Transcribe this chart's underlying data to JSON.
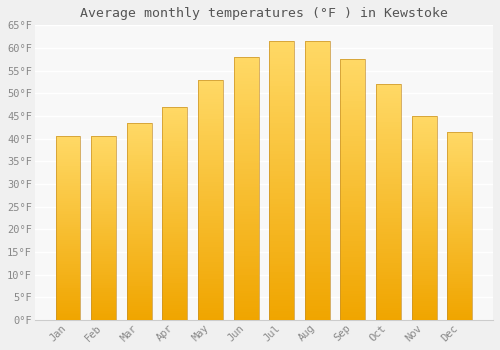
{
  "title": "Average monthly temperatures (°F ) in Kewstoke",
  "months": [
    "Jan",
    "Feb",
    "Mar",
    "Apr",
    "May",
    "Jun",
    "Jul",
    "Aug",
    "Sep",
    "Oct",
    "Nov",
    "Dec"
  ],
  "values": [
    40.5,
    40.5,
    43.5,
    47.0,
    53.0,
    58.0,
    61.5,
    61.5,
    57.5,
    52.0,
    45.0,
    41.5
  ],
  "bar_color_top": "#FFD966",
  "bar_color_bottom": "#F0A500",
  "bar_edge_color": "#C8922A",
  "background_color": "#F0F0F0",
  "plot_bg_color": "#F8F8F8",
  "grid_color": "#FFFFFF",
  "text_color": "#888888",
  "title_color": "#555555",
  "ylim": [
    0,
    65
  ],
  "yticks": [
    0,
    5,
    10,
    15,
    20,
    25,
    30,
    35,
    40,
    45,
    50,
    55,
    60,
    65
  ],
  "ytick_labels": [
    "0°F",
    "5°F",
    "10°F",
    "15°F",
    "20°F",
    "25°F",
    "30°F",
    "35°F",
    "40°F",
    "45°F",
    "50°F",
    "55°F",
    "60°F",
    "65°F"
  ]
}
